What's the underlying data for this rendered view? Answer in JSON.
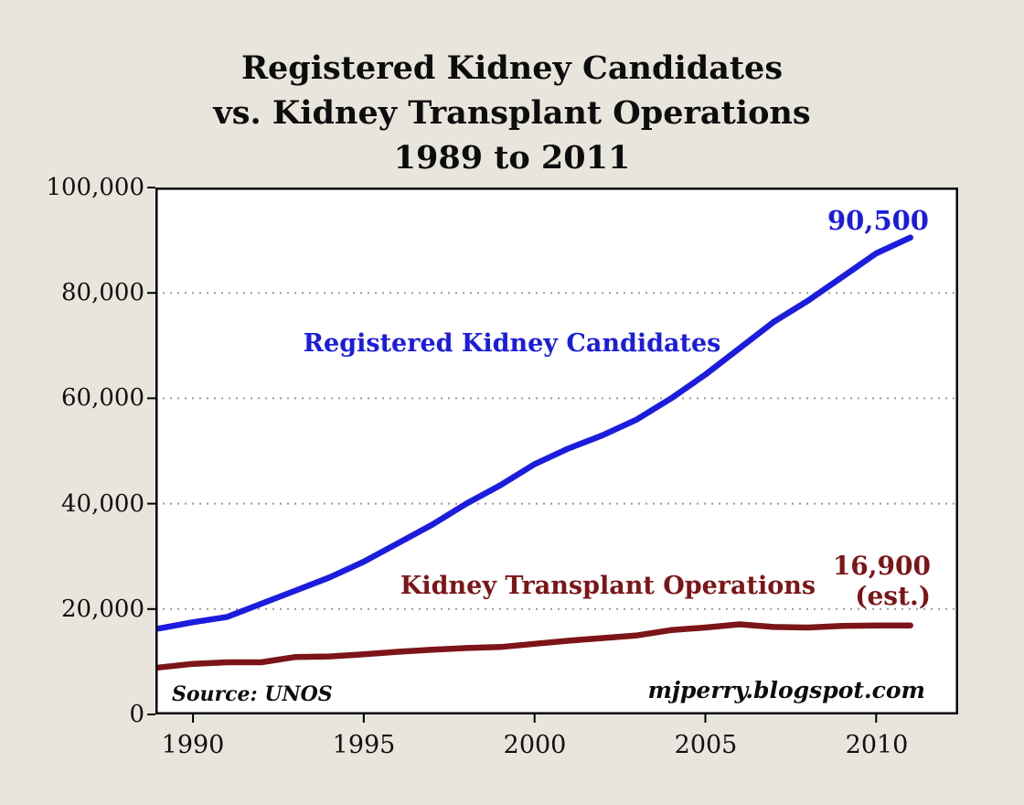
{
  "page": {
    "background": "#e8e5dc",
    "plot_background": "#ffffff"
  },
  "chart_data": {
    "type": "line",
    "title_lines": [
      "Registered Kidney Candidates",
      "vs. Kidney Transplant Operations",
      "1989 to 2011"
    ],
    "x": [
      1989,
      1990,
      1991,
      1992,
      1993,
      1994,
      1995,
      1996,
      1997,
      1998,
      1999,
      2000,
      2001,
      2002,
      2003,
      2004,
      2005,
      2006,
      2007,
      2008,
      2009,
      2010,
      2011
    ],
    "series": [
      {
        "name": "Registered Kidney Candidates",
        "color": "#1c1cdf",
        "values": [
          16300,
          17500,
          18500,
          21000,
          23500,
          26000,
          29000,
          32500,
          36000,
          40000,
          43500,
          47500,
          50500,
          53000,
          56000,
          60000,
          64500,
          69500,
          74500,
          78500,
          83000,
          87500,
          90500
        ]
      },
      {
        "name": "Kidney Transplant Operations",
        "color": "#7c1518",
        "values": [
          8900,
          9600,
          9900,
          9900,
          10900,
          11000,
          11400,
          11900,
          12300,
          12600,
          12800,
          13400,
          14000,
          14500,
          15000,
          16000,
          16500,
          17100,
          16600,
          16500,
          16800,
          16900,
          16900
        ]
      }
    ],
    "xlim": [
      1988.9,
      2012.4
    ],
    "ylim": [
      0,
      100000
    ],
    "grid": true,
    "grid_values": [
      20000,
      40000,
      60000,
      80000
    ],
    "ytick_values": [
      0,
      20000,
      40000,
      60000,
      80000,
      100000
    ],
    "ytick_labels": [
      "0",
      "20,000",
      "40,000",
      "60,000",
      "80,000",
      "100,000"
    ],
    "xtick_values": [
      1990,
      1995,
      2000,
      2005,
      2010
    ],
    "xtick_labels": [
      "1990",
      "1995",
      "2000",
      "2005",
      "2010"
    ],
    "annotations": {
      "candidates_end_value": "90,500",
      "candidates_label": "Registered Kidney Candidates",
      "transplants_label": "Kidney Transplant Operations",
      "transplants_end_value": "16,900",
      "transplants_end_note": "(est.)",
      "source": "Source: UNOS",
      "credit": "mjperry.blogspot.com"
    }
  }
}
